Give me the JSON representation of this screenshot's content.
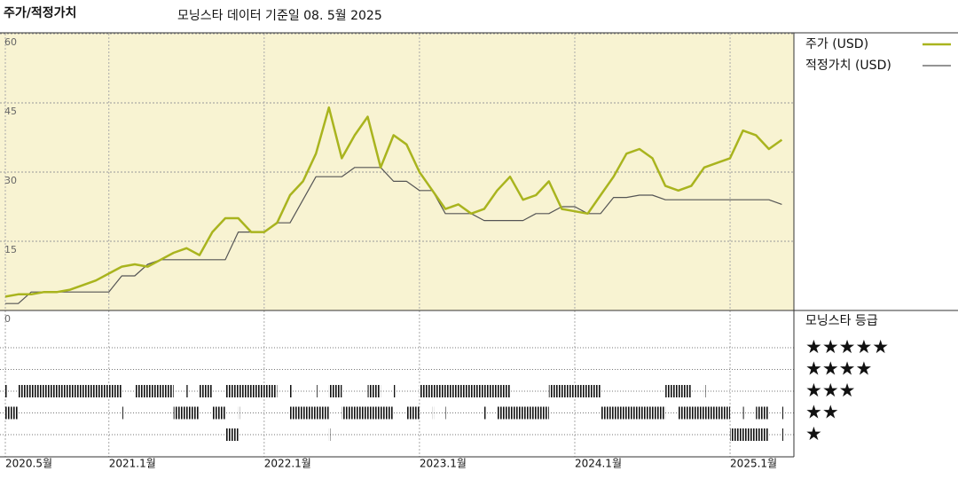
{
  "chart_data": {
    "type": "line",
    "title": "주가/적정가치",
    "subtitle": "모닝스타 데이터 기준일 08. 5월 2025",
    "x": [
      "2020-05",
      "2020-06",
      "2020-07",
      "2020-08",
      "2020-09",
      "2020-10",
      "2020-11",
      "2020-12",
      "2021-01",
      "2021-02",
      "2021-03",
      "2021-04",
      "2021-05",
      "2021-06",
      "2021-07",
      "2021-08",
      "2021-09",
      "2021-10",
      "2021-11",
      "2021-12",
      "2022-01",
      "2022-02",
      "2022-03",
      "2022-04",
      "2022-05",
      "2022-06",
      "2022-07",
      "2022-08",
      "2022-09",
      "2022-10",
      "2022-11",
      "2022-12",
      "2023-01",
      "2023-02",
      "2023-03",
      "2023-04",
      "2023-05",
      "2023-06",
      "2023-07",
      "2023-08",
      "2023-09",
      "2023-10",
      "2023-11",
      "2023-12",
      "2024-01",
      "2024-02",
      "2024-03",
      "2024-04",
      "2024-05",
      "2024-06",
      "2024-07",
      "2024-08",
      "2024-09",
      "2024-10",
      "2024-11",
      "2024-12",
      "2025-01",
      "2025-02",
      "2025-03",
      "2025-04",
      "2025-05"
    ],
    "series": [
      {
        "name": "주가 (USD)",
        "color": "#a9b41e",
        "width": 2.5,
        "values": [
          3,
          3.5,
          3.5,
          4,
          4,
          4.5,
          5.5,
          6.5,
          8,
          9.5,
          10,
          9.5,
          11,
          12.5,
          13.5,
          12,
          17,
          20,
          20,
          17,
          17,
          19,
          25,
          28,
          34,
          44,
          33,
          38,
          42,
          31,
          38,
          36,
          30,
          26,
          22,
          23,
          21,
          22,
          26,
          29,
          24,
          25,
          28,
          22,
          21.5,
          21,
          25,
          29,
          34,
          35,
          33,
          27,
          26,
          27,
          31,
          32,
          33,
          39,
          38,
          35,
          37
        ]
      },
      {
        "name": "적정가치 (USD)",
        "color": "#555555",
        "width": 1.2,
        "values": [
          1.5,
          1.5,
          4,
          4,
          4,
          4,
          4,
          4,
          4,
          7.5,
          7.5,
          10,
          11,
          11,
          11,
          11,
          11,
          11,
          17,
          17,
          17,
          19,
          19,
          24,
          29,
          29,
          29,
          31,
          31,
          31,
          28,
          28,
          26,
          26,
          21,
          21,
          21,
          19.5,
          19.5,
          19.5,
          19.5,
          21,
          21,
          22.5,
          22.5,
          21,
          21,
          24.5,
          24.5,
          25,
          25,
          24,
          24,
          24,
          24,
          24,
          24,
          24,
          24,
          24,
          23
        ]
      }
    ],
    "xlim": [
      "2020-05",
      "2025-06"
    ],
    "xticks": [
      {
        "value": "2020-05",
        "label": "2020.5월"
      },
      {
        "value": "2021-01",
        "label": "2021.1월"
      },
      {
        "value": "2022-01",
        "label": "2022.1월"
      },
      {
        "value": "2023-01",
        "label": "2023.1월"
      },
      {
        "value": "2024-01",
        "label": "2024.1월"
      },
      {
        "value": "2025-01",
        "label": "2025.1월"
      }
    ],
    "ylim": [
      0,
      60
    ],
    "yticks": [
      0,
      15,
      30,
      45,
      60
    ],
    "grid": true,
    "rating_title": "모닝스타 등급",
    "ratings": [
      {
        "label": "★★★★★",
        "periods": []
      },
      {
        "label": "★★★★",
        "periods": []
      },
      {
        "label": "★★★",
        "periods": [
          [
            "2020-05",
            "2020-05"
          ],
          [
            "2020-06",
            "2021-02"
          ],
          [
            "2021-03",
            "2021-06"
          ],
          [
            "2021-07",
            "2021-07"
          ],
          [
            "2021-08",
            "2021-09"
          ],
          [
            "2021-10",
            "2022-02"
          ],
          [
            "2022-03",
            "2022-03"
          ],
          [
            "2022-05",
            "2022-05"
          ],
          [
            "2022-06",
            "2022-07"
          ],
          [
            "2022-09",
            "2022-10"
          ],
          [
            "2022-11",
            "2022-11"
          ],
          [
            "2023-01",
            "2023-08"
          ],
          [
            "2023-11",
            "2024-03"
          ],
          [
            "2024-08",
            "2024-10"
          ],
          [
            "2024-11",
            "2024-11"
          ]
        ]
      },
      {
        "label": "★★",
        "periods": [
          [
            "2020-05",
            "2020-06"
          ],
          [
            "2021-02",
            "2021-02"
          ],
          [
            "2021-06",
            "2021-08"
          ],
          [
            "2021-09",
            "2021-10"
          ],
          [
            "2021-11",
            "2021-11"
          ],
          [
            "2022-03",
            "2022-06"
          ],
          [
            "2022-07",
            "2022-11"
          ],
          [
            "2022-12",
            "2023-01"
          ],
          [
            "2023-02",
            "2023-02"
          ],
          [
            "2023-03",
            "2023-03"
          ],
          [
            "2023-06",
            "2023-06"
          ],
          [
            "2023-07",
            "2023-11"
          ],
          [
            "2024-03",
            "2024-08"
          ],
          [
            "2024-09",
            "2025-01"
          ],
          [
            "2025-02",
            "2025-02"
          ],
          [
            "2025-03",
            "2025-04"
          ],
          [
            "2025-05",
            "2025-05"
          ]
        ]
      },
      {
        "label": "★",
        "periods": [
          [
            "2021-10",
            "2021-11"
          ],
          [
            "2022-06",
            "2022-06"
          ],
          [
            "2025-01",
            "2025-04"
          ],
          [
            "2025-05",
            "2025-05"
          ]
        ]
      }
    ]
  }
}
